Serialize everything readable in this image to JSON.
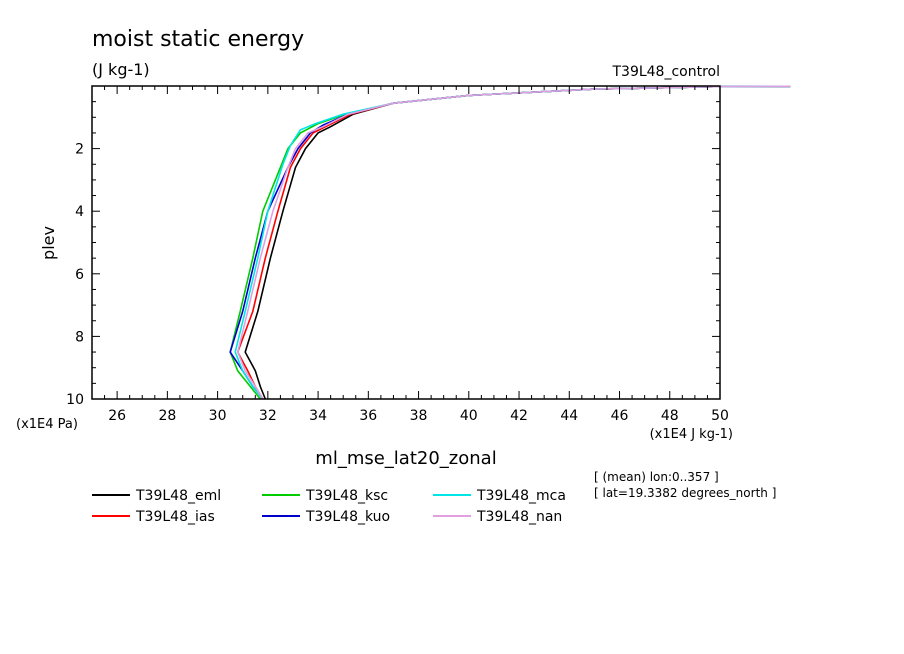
{
  "chart_data": {
    "type": "line",
    "title": "moist static energy",
    "subtitle": "(J kg-1)",
    "experiment_label": "T39L48_control",
    "xlabel": "ml_mse_lat20_zonal",
    "ylabel": "plev",
    "x_unit": "(x1E4 J kg-1)",
    "y_unit": "(x1E4 Pa)",
    "xlim": [
      25,
      50
    ],
    "ylim": [
      10,
      0
    ],
    "y_inverted": true,
    "xticks": [
      26,
      28,
      30,
      32,
      34,
      36,
      38,
      40,
      42,
      44,
      46,
      48,
      50
    ],
    "yticks": [
      2,
      4,
      6,
      8,
      10
    ],
    "legend_position": "bottom",
    "info_lines": [
      "[ (mean) lon:0..357 ]",
      "[ lat=19.3382 degrees_north ]"
    ],
    "series": [
      {
        "name": "T39L48_eml",
        "color": "#000000",
        "points": [
          [
            52.8,
            0.01
          ],
          [
            50,
            0.02
          ],
          [
            45,
            0.1
          ],
          [
            40,
            0.3
          ],
          [
            37,
            0.55
          ],
          [
            35.4,
            0.9
          ],
          [
            34.5,
            1.3
          ],
          [
            34,
            1.5
          ],
          [
            33.5,
            2.0
          ],
          [
            33.1,
            2.6
          ],
          [
            32.6,
            4.0
          ],
          [
            32.1,
            5.5
          ],
          [
            31.6,
            7.2
          ],
          [
            31.1,
            8.5
          ],
          [
            31.5,
            9.1
          ],
          [
            31.7,
            9.6
          ],
          [
            31.9,
            10.0
          ]
        ]
      },
      {
        "name": "T39L48_ias",
        "color": "#ff0000",
        "points": [
          [
            52.8,
            0.01
          ],
          [
            50,
            0.02
          ],
          [
            45,
            0.1
          ],
          [
            40,
            0.3
          ],
          [
            37,
            0.55
          ],
          [
            35.3,
            0.9
          ],
          [
            34.3,
            1.3
          ],
          [
            33.8,
            1.5
          ],
          [
            33.3,
            2.0
          ],
          [
            32.9,
            2.6
          ],
          [
            32.4,
            4.0
          ],
          [
            31.9,
            5.5
          ],
          [
            31.4,
            7.2
          ],
          [
            30.8,
            8.5
          ],
          [
            31.2,
            9.1
          ],
          [
            31.5,
            9.6
          ],
          [
            31.8,
            10.0
          ]
        ]
      },
      {
        "name": "T39L48_ksc",
        "color": "#00cc00",
        "points": [
          [
            52.8,
            0.01
          ],
          [
            50,
            0.02
          ],
          [
            45,
            0.1
          ],
          [
            40,
            0.3
          ],
          [
            37,
            0.55
          ],
          [
            35.1,
            0.9
          ],
          [
            34,
            1.2
          ],
          [
            33.3,
            1.5
          ],
          [
            32.8,
            2.0
          ],
          [
            32.5,
            2.6
          ],
          [
            31.8,
            4.0
          ],
          [
            31.4,
            5.5
          ],
          [
            30.9,
            7.2
          ],
          [
            30.5,
            8.5
          ],
          [
            30.8,
            9.1
          ],
          [
            31.3,
            9.6
          ],
          [
            31.7,
            10.0
          ]
        ]
      },
      {
        "name": "T39L48_kuo",
        "color": "#0000cc",
        "points": [
          [
            52.8,
            0.01
          ],
          [
            50,
            0.02
          ],
          [
            45,
            0.1
          ],
          [
            40,
            0.3
          ],
          [
            37,
            0.55
          ],
          [
            35.2,
            0.9
          ],
          [
            34.2,
            1.25
          ],
          [
            33.7,
            1.5
          ],
          [
            33.2,
            2.0
          ],
          [
            32.8,
            2.6
          ],
          [
            32.0,
            4.0
          ],
          [
            31.5,
            5.5
          ],
          [
            31.0,
            7.2
          ],
          [
            30.5,
            8.5
          ],
          [
            31.0,
            9.1
          ],
          [
            31.4,
            9.6
          ],
          [
            31.8,
            10.0
          ]
        ]
      },
      {
        "name": "T39L48_mca",
        "color": "#00e5e5",
        "points": [
          [
            52.8,
            0.01
          ],
          [
            50,
            0.02
          ],
          [
            45,
            0.1
          ],
          [
            40,
            0.3
          ],
          [
            37,
            0.55
          ],
          [
            35.0,
            0.9
          ],
          [
            33.9,
            1.2
          ],
          [
            33.3,
            1.4
          ],
          [
            32.9,
            1.9
          ],
          [
            32.6,
            2.5
          ],
          [
            32.0,
            4.0
          ],
          [
            31.6,
            5.5
          ],
          [
            31.1,
            7.2
          ],
          [
            30.7,
            8.5
          ],
          [
            31.0,
            9.1
          ],
          [
            31.4,
            9.6
          ],
          [
            31.8,
            10.0
          ]
        ]
      },
      {
        "name": "T39L48_nan",
        "color": "#e0a0e0",
        "points": [
          [
            52.8,
            0.01
          ],
          [
            50,
            0.02
          ],
          [
            45,
            0.1
          ],
          [
            40,
            0.3
          ],
          [
            37,
            0.55
          ],
          [
            35.2,
            0.9
          ],
          [
            34.2,
            1.3
          ],
          [
            33.6,
            1.5
          ],
          [
            33.1,
            2.0
          ],
          [
            32.8,
            2.6
          ],
          [
            32.2,
            4.0
          ],
          [
            31.7,
            5.5
          ],
          [
            31.2,
            7.2
          ],
          [
            30.8,
            8.5
          ],
          [
            31.1,
            9.1
          ],
          [
            31.5,
            9.6
          ],
          [
            31.8,
            10.0
          ]
        ]
      }
    ]
  }
}
